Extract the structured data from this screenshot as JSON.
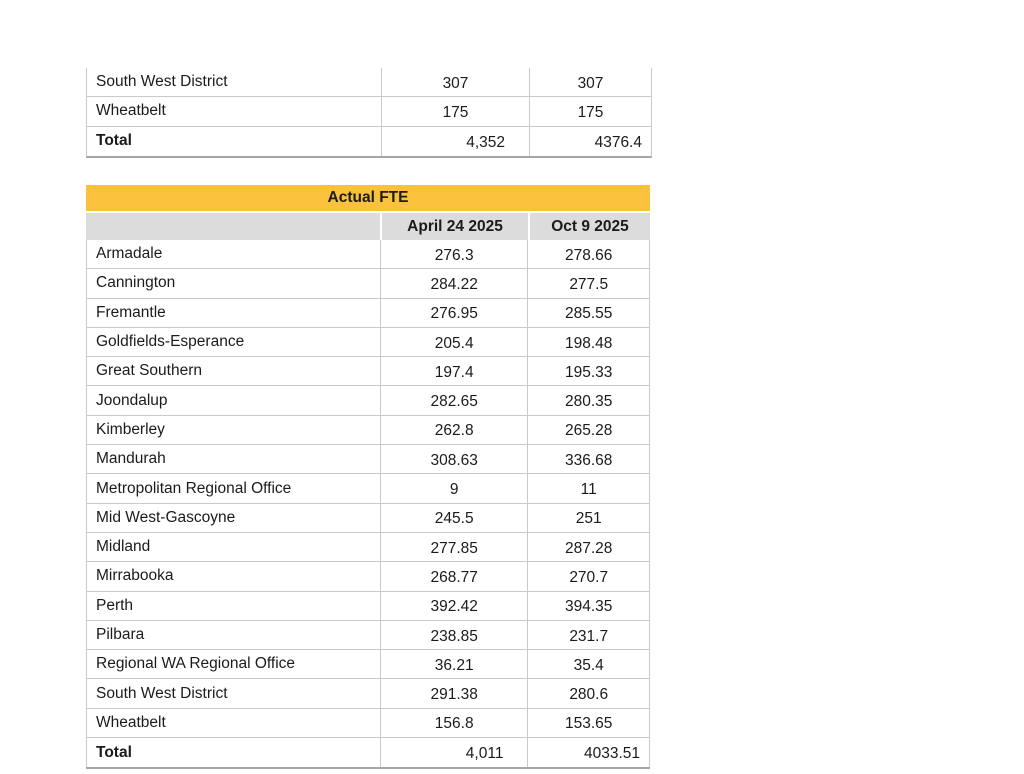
{
  "colors": {
    "title_bar_yellow": "#fac23c",
    "header_gray": "#dcdcdc",
    "grid_border": "#c9c9c9",
    "table_bottom_border": "#a6a6a6",
    "text": "#1b1b1b",
    "background": "#ffffff"
  },
  "partial_table": {
    "rows": [
      [
        "South West District",
        "307",
        "307"
      ],
      [
        "Wheatbelt",
        "175",
        "175"
      ]
    ],
    "total_row": [
      "Total",
      "4,352",
      "4376.4"
    ]
  },
  "actual_fte_table": {
    "title": "Actual FTE",
    "columns": [
      "",
      "April 24 2025",
      "Oct 9 2025"
    ],
    "rows": [
      [
        "Armadale",
        "276.3",
        "278.66"
      ],
      [
        "Cannington",
        "284.22",
        "277.5"
      ],
      [
        "Fremantle",
        "276.95",
        "285.55"
      ],
      [
        "Goldfields-Esperance",
        "205.4",
        "198.48"
      ],
      [
        "Great Southern",
        "197.4",
        "195.33"
      ],
      [
        "Joondalup",
        "282.65",
        "280.35"
      ],
      [
        "Kimberley",
        "262.8",
        "265.28"
      ],
      [
        "Mandurah",
        "308.63",
        "336.68"
      ],
      [
        "Metropolitan Regional Office",
        "9",
        "11"
      ],
      [
        "Mid West-Gascoyne",
        "245.5",
        "251"
      ],
      [
        "Midland",
        "277.85",
        "287.28"
      ],
      [
        "Mirrabooka",
        "268.77",
        "270.7"
      ],
      [
        "Perth",
        "392.42",
        "394.35"
      ],
      [
        "Pilbara",
        "238.85",
        "231.7"
      ],
      [
        "Regional WA Regional Office",
        "36.21",
        "35.4"
      ],
      [
        "South West District",
        "291.38",
        "280.6"
      ],
      [
        "Wheatbelt",
        "156.8",
        "153.65"
      ]
    ],
    "total_row": [
      "Total",
      "4,011",
      "4033.51"
    ]
  }
}
